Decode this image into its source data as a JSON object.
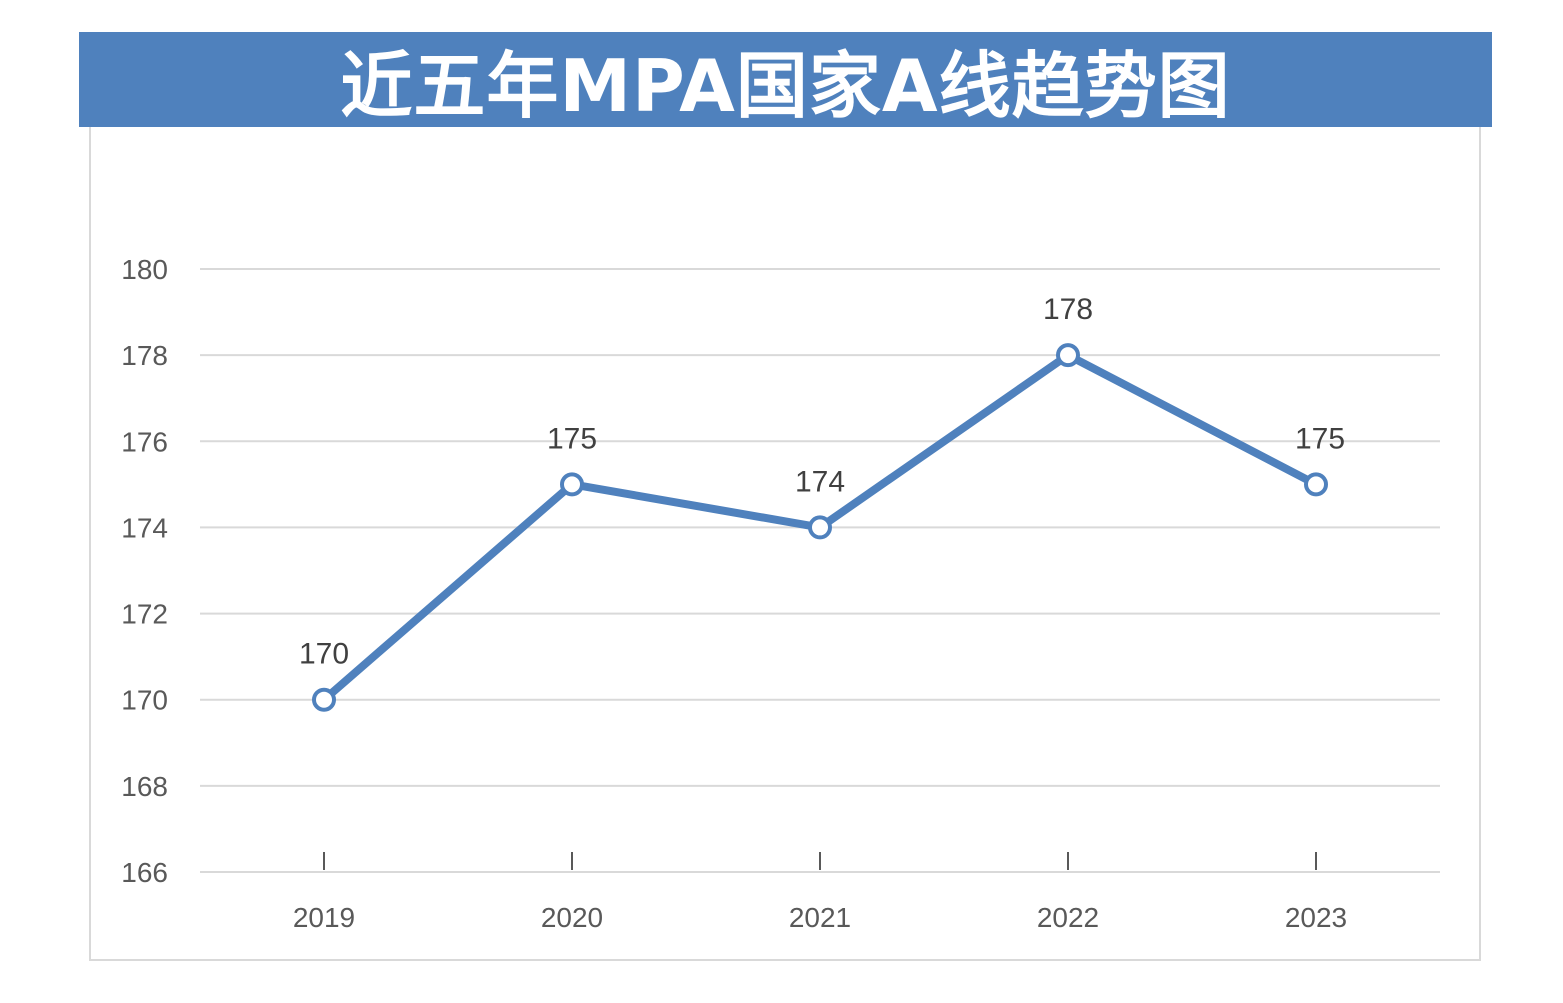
{
  "chart_data": {
    "type": "line",
    "title": "近五年MPA国家A线趋势图",
    "categories": [
      "2019",
      "2020",
      "2021",
      "2022",
      "2023"
    ],
    "series": [
      {
        "values": [
          170,
          175,
          174,
          178,
          175
        ],
        "data_labels": [
          "170",
          "175",
          "174",
          "178",
          "175"
        ]
      }
    ],
    "ylim": [
      166,
      180
    ],
    "yticks": [
      "166",
      "168",
      "170",
      "172",
      "174",
      "176",
      "178",
      "180"
    ],
    "xlabel": "",
    "ylabel": "",
    "grid": true,
    "legend": "none",
    "colors": {
      "title_bar": "#4f81bd",
      "line": "#4f81bd",
      "grid": "#d9d9d9",
      "marker_fill": "#ffffff"
    }
  }
}
